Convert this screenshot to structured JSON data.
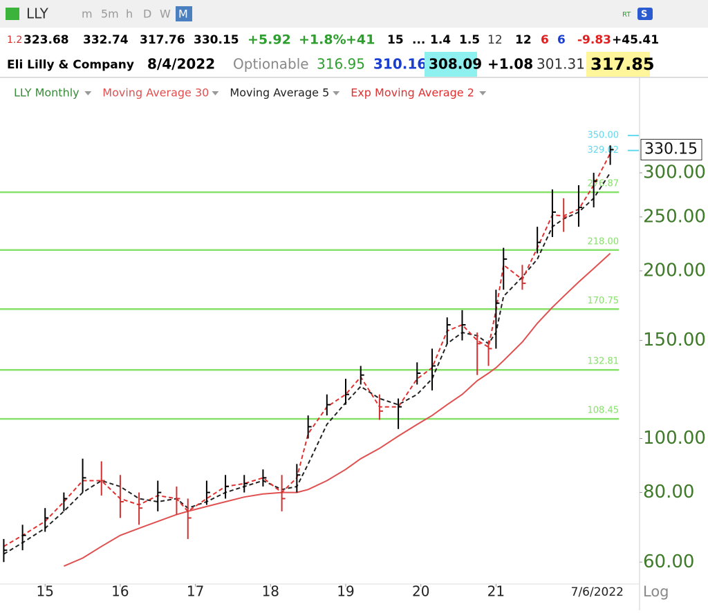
{
  "toolbar": {
    "symbol": "LLY",
    "buttons": [
      "m",
      "5m",
      "h",
      "D",
      "W",
      "M"
    ],
    "badges": [
      "RT",
      "S"
    ]
  },
  "quote_row1": [
    {
      "text": "1.2",
      "color": "#d03030"
    },
    {
      "text": "323.68",
      "color": "#000"
    },
    {
      "text": "332.74",
      "color": "#000"
    },
    {
      "text": "317.76",
      "color": "#000"
    },
    {
      "text": "330.15",
      "color": "#000"
    },
    {
      "text": "+5.92",
      "color": "#2e9e2e"
    },
    {
      "text": "+1.8%",
      "color": "#2e9e2e"
    },
    {
      "text": "+41",
      "color": "#2e9e2e"
    },
    {
      "text": "15",
      "color": "#000"
    },
    {
      "text": "...",
      "color": "#000"
    },
    {
      "text": "1.4",
      "color": "#000"
    },
    {
      "text": "1.5",
      "color": "#000"
    },
    {
      "text": "12",
      "color": "#333"
    },
    {
      "text": "12",
      "color": "#000"
    },
    {
      "text": "6",
      "color": "#e02020"
    },
    {
      "text": "6",
      "color": "#1a3fd0"
    },
    {
      "text": "-9.83",
      "color": "#e02020"
    },
    {
      "text": "+45.41",
      "color": "#000"
    }
  ],
  "quote_row2": [
    {
      "text": "Eli Lilly & Company",
      "color": "#000"
    },
    {
      "text": "8/4/2022",
      "color": "#000"
    },
    {
      "text": "Optionable",
      "color": "#888"
    },
    {
      "text": "316.95",
      "color": "#2e9e2e"
    },
    {
      "text": "310.16",
      "color": "#1a3fd0"
    },
    {
      "text": "308.09",
      "color": "#000",
      "background": "#8ff0f0"
    },
    {
      "text": "+1.08",
      "color": "#000"
    },
    {
      "text": "301.31",
      "color": "#333"
    },
    {
      "text": "317.85",
      "color": "#000",
      "background": "#fff59a"
    }
  ],
  "chart_data": {
    "type": "ohlc",
    "log_scale": true,
    "xlim": [
      2014.4,
      2022.91
    ],
    "xticks": [
      {
        "value": 2015,
        "label": "15"
      },
      {
        "value": 2016,
        "label": "16"
      },
      {
        "value": 2017,
        "label": "17"
      },
      {
        "value": 2018,
        "label": "18"
      },
      {
        "value": 2019,
        "label": "19"
      },
      {
        "value": 2020,
        "label": "20"
      },
      {
        "value": 2021,
        "label": "21"
      }
    ],
    "ylim": [
      54.8,
      437.5
    ],
    "yticks": [
      {
        "value": 60,
        "label": "60.00"
      },
      {
        "value": 80,
        "label": "80.00"
      },
      {
        "value": 100,
        "label": "100.00"
      },
      {
        "value": 150,
        "label": "150.00"
      },
      {
        "value": 200,
        "label": "200.00"
      },
      {
        "value": 250,
        "label": "250.00"
      },
      {
        "value": 300,
        "label": "300.00"
      }
    ],
    "x": [
      2014.45,
      2014.7,
      2015.0,
      2015.25,
      2015.5,
      2015.75,
      2016.0,
      2016.25,
      2016.5,
      2016.75,
      2016.9,
      2017.15,
      2017.4,
      2017.65,
      2017.9,
      2018.15,
      2018.35,
      2018.5,
      2018.75,
      2019.0,
      2019.2,
      2019.45,
      2019.7,
      2019.95,
      2020.15,
      2020.35,
      2020.55,
      2020.75,
      2020.9,
      2021.0,
      2021.1,
      2021.35,
      2021.55,
      2021.75,
      2021.9,
      2022.1,
      2022.3,
      2022.52
    ],
    "series": [
      {
        "name": "LLY Monthly",
        "color": "#000000",
        "values": [
          63,
          67,
          72,
          78,
          85,
          84,
          77,
          75,
          80,
          78,
          72,
          80,
          82,
          83,
          85,
          78,
          86,
          105,
          115,
          120,
          130,
          112,
          114,
          131,
          135,
          160,
          160,
          148,
          145,
          175,
          210,
          190,
          225,
          255,
          250,
          260,
          290,
          330.15
        ],
        "high": [
          66,
          70,
          75,
          80,
          92,
          91,
          86,
          80,
          84,
          82,
          78,
          84,
          86,
          86,
          88,
          86,
          90,
          110,
          120,
          128,
          135,
          120,
          118,
          137,
          145,
          165,
          170,
          155,
          150,
          185,
          220,
          205,
          240,
          280,
          270,
          285,
          300,
          336
        ],
        "low": [
          60,
          63,
          68,
          74,
          80,
          79,
          72,
          70,
          74,
          73,
          66,
          76,
          78,
          80,
          82,
          74,
          80,
          100,
          110,
          115,
          125,
          108,
          104,
          125,
          122,
          148,
          150,
          130,
          135,
          145,
          185,
          185,
          215,
          230,
          235,
          240,
          260,
          310
        ]
      },
      {
        "name": "Moving Average 30",
        "color": "#e05050",
        "dash": false,
        "values": [
          null,
          null,
          null,
          59,
          61,
          64,
          67,
          69,
          71,
          73,
          74,
          75.5,
          77,
          78.5,
          79.5,
          80,
          80,
          81,
          84,
          88,
          92,
          96,
          101,
          106,
          110,
          115,
          120,
          127,
          131,
          134,
          138,
          149,
          161,
          172,
          180,
          191,
          202,
          215
        ]
      },
      {
        "name": "Moving Average 5",
        "color": "#222222",
        "dash": true,
        "values": [
          62,
          65,
          69,
          74,
          80,
          84,
          82,
          78,
          77,
          78,
          75,
          77,
          80,
          82,
          84,
          81,
          82,
          90,
          106,
          116,
          124,
          118,
          115,
          120,
          128,
          148,
          155,
          153,
          148,
          155,
          180,
          195,
          210,
          240,
          248,
          255,
          270,
          300
        ]
      },
      {
        "name": "Exp Moving Average 2",
        "color": "#e03030",
        "dash": true,
        "values": [
          64,
          67,
          71,
          77,
          84,
          84,
          78,
          76,
          79,
          78,
          74,
          78,
          82,
          83,
          85,
          80,
          85,
          102,
          114,
          120,
          129,
          114,
          114,
          128,
          134,
          156,
          160,
          150,
          146,
          170,
          205,
          193,
          220,
          252,
          251,
          258,
          285,
          325
        ]
      }
    ],
    "levels": [
      {
        "value": 276.87,
        "label": "276.87",
        "color": "#86e06a"
      },
      {
        "value": 218,
        "label": "218.00",
        "color": "#86e06a"
      },
      {
        "value": 170.75,
        "label": "170.75",
        "color": "#86e06a"
      },
      {
        "value": 132.81,
        "label": "132.81",
        "color": "#86e06a"
      },
      {
        "value": 108.45,
        "label": "108.45",
        "color": "#86e06a"
      }
    ],
    "annotations": [
      {
        "value": 350,
        "label": "350.00",
        "color": "#5fd8f0"
      },
      {
        "value": 329.02,
        "label": "329.02",
        "color": "#5fd8f0"
      }
    ],
    "last_price": {
      "value": 330.15,
      "label": "330.15"
    },
    "date_label": "7/6/2022",
    "scale_label": "Log"
  }
}
